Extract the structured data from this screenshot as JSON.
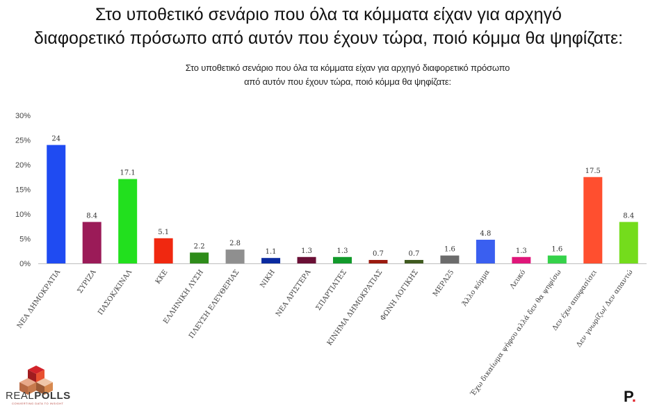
{
  "header": {
    "title_line1": "Στο υποθετικό σενάριο που όλα τα κόμματα είχαν για αρχηγό",
    "title_line2": "διαφορετικό πρόσωπο από αυτόν που έχουν τώρα, ποιό κόμμα θα ψηφίζατε:"
  },
  "chart_data": {
    "type": "bar",
    "title_line1": "Στο υποθετικό σενάριο που όλα τα κόμματα είχαν για αρχηγό διαφορετικό πρόσωπο",
    "title_line2": "από αυτόν που έχουν τώρα, ποιό κόμμα θα ψηφίζατε:",
    "categories": [
      "ΝΕΑ ΔΗΜΟΚΡΑΤΙΑ",
      "ΣΥΡΙΖΑ",
      "ΠΑΣΟΚ/ΚΙΝΑΛ",
      "ΚΚΕ",
      "ΕΛΛΗΝΙΚΗ ΛΥΣΗ",
      "ΠΛΕΥΣΗ ΕΛΕΥΘΕΡΙΑΣ",
      "ΝΙΚΗ",
      "ΝΕΑ ΑΡΙΣΤΕΡΑ",
      "ΣΠΑΡΤΙΑΤΕΣ",
      "ΚΙΝΗΜΑ ΔΗΜΟΚΡΑΤΙΑΣ",
      "ΦΩΝΗ ΛΟΓΙΚΗΣ",
      "ΜΕΡΑ25",
      "Άλλο κόμμα",
      "Λευκό",
      "Έχω δικαίωμα ψήφου αλλά δεν θα ψηφίσω",
      "Δεν έχω αποφασίσει",
      "Δεν γνωρίζω/ Δεν απαντώ"
    ],
    "values": [
      24,
      8.4,
      17.1,
      5.1,
      2.2,
      2.8,
      1.1,
      1.3,
      1.3,
      0.7,
      0.7,
      1.6,
      4.8,
      1.3,
      1.6,
      17.5,
      8.4
    ],
    "value_labels": [
      "24",
      "8.4",
      "17.1",
      "5.1",
      "2.2",
      "2.8",
      "1.1",
      "1.3",
      "1.3",
      "0.7",
      "0.7",
      "1.6",
      "4.8",
      "1.3",
      "1.6",
      "17.5",
      "8.4"
    ],
    "colors": [
      "#1f4bf2",
      "#9b1b58",
      "#22e01e",
      "#f02810",
      "#2e8c1a",
      "#8f8f8f",
      "#0a2aa0",
      "#6a0f35",
      "#129a2b",
      "#9b1a0f",
      "#3f5a1f",
      "#6b6b6b",
      "#3a5ff0",
      "#e0167a",
      "#35d24a",
      "#ff4f2f",
      "#74dc1c"
    ],
    "yticks": [
      "0%",
      "5%",
      "10%",
      "15%",
      "20%",
      "25%",
      "30%"
    ],
    "ylim": [
      0,
      30
    ],
    "grid": false,
    "legend": "none"
  },
  "branding": {
    "realpolls_part1": "REAL",
    "realpolls_part2": "POLLS",
    "realpolls_tagline": "CONVERTING DATA TO INSIGHT",
    "right_logo": "P",
    "right_logo_dot": "."
  }
}
